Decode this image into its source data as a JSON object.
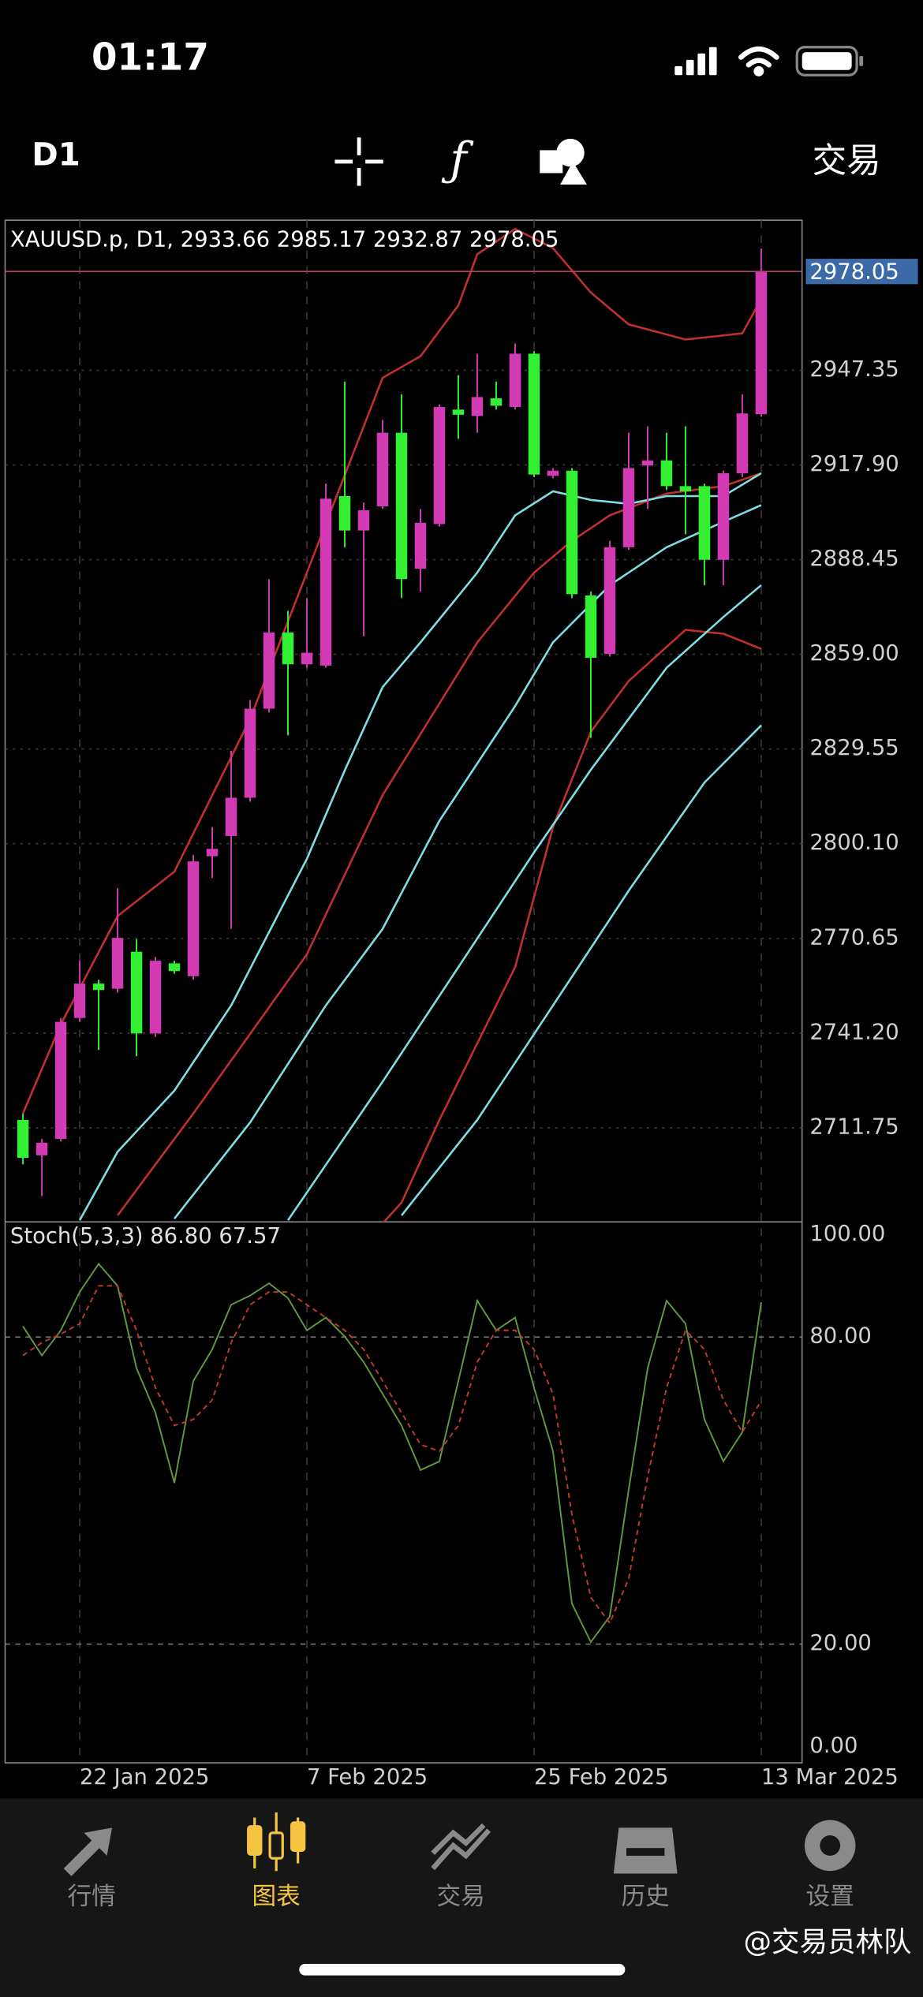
{
  "status_bar": {
    "time": "01:17"
  },
  "toolbar": {
    "timeframe": "D1",
    "trade": "交易"
  },
  "chart_data": {
    "type": "candlestick",
    "title": "XAUUSD.p, D1, 2933.66 2985.17 2932.87 2978.05",
    "categories": [
      null,
      null,
      null,
      "22 Jan 2025",
      null,
      null,
      null,
      null,
      null,
      null,
      null,
      null,
      null,
      null,
      null,
      "7 Feb 2025",
      null,
      null,
      null,
      null,
      null,
      null,
      null,
      null,
      null,
      null,
      null,
      "25 Feb 2025",
      null,
      null,
      null,
      null,
      null,
      null,
      null,
      null,
      null,
      null,
      null,
      "13 Mar 2025"
    ],
    "open": [
      2714.2,
      2703.2,
      2708.3,
      2745.9,
      2756.6,
      2755.0,
      2766.5,
      2741.1,
      2762.9,
      2758.9,
      2796.2,
      2802.5,
      2814.4,
      2842.1,
      2865.8,
      2855.9,
      2855.5,
      2908.2,
      2897.5,
      2905.0,
      2927.9,
      2885.6,
      2899.5,
      2935.1,
      2933.1,
      2938.6,
      2935.9,
      2952.5,
      2914.5,
      2916.1,
      2877.3,
      2859.1,
      2892.3,
      2917.7,
      2919.3,
      2911.3,
      2911.3,
      2888.4,
      2915.3,
      2933.66
    ],
    "high": [
      2716.2,
      2708.3,
      2745.9,
      2763.7,
      2757.8,
      2786.3,
      2770.4,
      2764.9,
      2763.7,
      2796.6,
      2805.3,
      2829.0,
      2844.8,
      2882.4,
      2872.5,
      2876.5,
      2912.1,
      2943.8,
      2906.2,
      2931.9,
      2939.8,
      2904.2,
      2936.7,
      2945.8,
      2952.5,
      2943.8,
      2955.7,
      2953.3,
      2916.9,
      2916.9,
      2878.5,
      2894.3,
      2927.9,
      2929.9,
      2927.9,
      2929.9,
      2912.1,
      2916.1,
      2939.8,
      2985.17
    ],
    "low": [
      2700.4,
      2690.5,
      2707.5,
      2744.7,
      2736.0,
      2753.8,
      2734.0,
      2740.0,
      2759.7,
      2757.8,
      2789.4,
      2773.6,
      2813.2,
      2840.9,
      2833.8,
      2854.8,
      2854.8,
      2892.3,
      2864.6,
      2904.2,
      2876.5,
      2878.5,
      2898.7,
      2926.0,
      2927.9,
      2935.1,
      2935.1,
      2914.1,
      2913.7,
      2876.5,
      2833.0,
      2858.3,
      2891.5,
      2904.2,
      2910.1,
      2896.3,
      2880.5,
      2880.5,
      2914.1,
      2932.87
    ],
    "close": [
      2702.4,
      2707.1,
      2744.7,
      2756.6,
      2754.6,
      2770.8,
      2741.1,
      2763.7,
      2760.5,
      2794.6,
      2798.5,
      2814.4,
      2842.1,
      2865.8,
      2855.9,
      2859.5,
      2907.4,
      2897.5,
      2903.8,
      2927.9,
      2882.4,
      2899.9,
      2935.9,
      2933.5,
      2939.0,
      2936.3,
      2952.5,
      2914.9,
      2916.1,
      2877.7,
      2857.9,
      2892.3,
      2916.9,
      2919.3,
      2911.3,
      2909.7,
      2888.4,
      2915.3,
      2933.9,
      2978.05
    ],
    "up_color": "#d23bb4",
    "down_color": "#33f033",
    "ylim": [
      2682.5,
      2994.0
    ],
    "yticks": [
      2711.75,
      {
        "value": 2741.2,
        "label": "2741.20"
      },
      2770.65,
      {
        "value": 2800.1,
        "label": "2800.10"
      },
      2829.55,
      {
        "value": 2859,
        "label": "2859.00"
      },
      2888.45,
      {
        "value": 2917.9,
        "label": "2917.90"
      },
      2947.35
    ],
    "grid": true,
    "last_price_color": "#b8406a",
    "overlays": [
      {
        "color": "#c0302c",
        "x": [
          0,
          2,
          5,
          8,
          9,
          12,
          15,
          19,
          21,
          23,
          24,
          26,
          28,
          30,
          32,
          35,
          38,
          39
        ],
        "values": [
          2716.2,
          2743.9,
          2777.6,
          2791.4,
          2803.3,
          2838.9,
          2884.4,
          2945.0,
          2951.7,
          2967.5,
          2983.4,
          2991.3,
          2985.3,
          2971.5,
          2961.6,
          2956.9,
          2958.8,
          2969.5
        ]
      },
      {
        "color": "#c0302c",
        "x": [
          5,
          9,
          15,
          19,
          24,
          27,
          29,
          31,
          34,
          37,
          39
        ],
        "values": [
          2684.5,
          2716.2,
          2765.7,
          2815.2,
          2862.7,
          2884.4,
          2894.3,
          2902.2,
          2909.0,
          2911.3,
          2915.3
        ]
      },
      {
        "color": "#c0302c",
        "x": [
          19,
          20,
          22,
          24,
          26,
          28,
          30,
          32,
          35,
          37,
          39
        ],
        "values": [
          2682.0,
          2688.5,
          2714.2,
          2738.0,
          2761.7,
          2805.3,
          2834.9,
          2850.7,
          2866.6,
          2865.4,
          2860.7
        ]
      },
      {
        "color": "#7fdde8",
        "x": [
          3,
          5,
          8,
          11,
          15,
          17,
          19,
          21,
          24,
          26,
          28,
          30,
          32,
          34,
          37,
          39
        ],
        "values": [
          2683.0,
          2704.3,
          2723.3,
          2749.8,
          2795.4,
          2822.9,
          2848.8,
          2862.7,
          2884.4,
          2902.2,
          2909.7,
          2907.0,
          2905.8,
          2908.2,
          2908.2,
          2915.3
        ]
      },
      {
        "color": "#7fdde8",
        "x": [
          8,
          12,
          16,
          19,
          22,
          26,
          28,
          31,
          34,
          37,
          39
        ],
        "values": [
          2683.5,
          2713.4,
          2749.8,
          2773.6,
          2807.2,
          2842.9,
          2862.7,
          2880.5,
          2892.3,
          2900.2,
          2905.4
        ]
      },
      {
        "color": "#7fdde8",
        "x": [
          14,
          19,
          23,
          27,
          30,
          34,
          37,
          39
        ],
        "values": [
          2683.0,
          2726.1,
          2761.7,
          2797.4,
          2823.1,
          2854.8,
          2870.6,
          2880.5
        ]
      },
      {
        "color": "#7fdde8",
        "x": [
          20,
          24,
          28,
          32,
          36,
          39
        ],
        "values": [
          2684.5,
          2714.2,
          2749.8,
          2785.5,
          2819.1,
          2836.9
        ]
      }
    ],
    "stoch": {
      "label": "Stoch(5,3,3) 86.80 67.57",
      "ylim": [
        -3.2,
        102.5
      ],
      "yticks": [
        {
          "value": 100,
          "label": "100.00"
        },
        {
          "value": 80,
          "label": "80.00"
        },
        {
          "value": 20,
          "label": "20.00"
        },
        {
          "value": 0,
          "label": "0.00"
        }
      ],
      "levels": [
        80,
        20
      ],
      "series": [
        {
          "color": "#5f9a3e",
          "values": [
            82.1,
            76.4,
            81.3,
            88.8,
            94.3,
            90.0,
            73.9,
            65.2,
            51.5,
            71.4,
            77.6,
            86.3,
            88.1,
            90.5,
            87.6,
            81.3,
            83.8,
            80.1,
            75.1,
            68.9,
            62.7,
            54.0,
            55.7,
            71.4,
            87.1,
            81.3,
            83.8,
            70.1,
            57.7,
            27.9,
            20.4,
            25.4,
            50.2,
            73.9,
            87.1,
            82.6,
            63.9,
            55.7,
            61.4,
            86.8
          ]
        },
        {
          "color": "#c0392b",
          "dashed": true,
          "values": [
            76.4,
            78.9,
            80.6,
            82.6,
            90.0,
            90.0,
            81.3,
            70.1,
            62.7,
            63.9,
            67.7,
            78.9,
            86.3,
            88.8,
            88.8,
            86.3,
            83.8,
            81.3,
            77.6,
            71.4,
            65.2,
            59.0,
            57.7,
            62.7,
            75.1,
            81.3,
            81.3,
            77.6,
            68.9,
            45.3,
            29.1,
            24.1,
            32.8,
            52.7,
            70.1,
            81.3,
            77.6,
            67.7,
            61.4,
            67.57
          ]
        }
      ]
    }
  },
  "tabs": [
    {
      "label": "行情",
      "active": false
    },
    {
      "label": "图表",
      "active": true
    },
    {
      "label": "交易",
      "active": false
    },
    {
      "label": "历史",
      "active": false
    },
    {
      "label": "设置",
      "active": false
    }
  ],
  "watermark": "@交易员林队"
}
